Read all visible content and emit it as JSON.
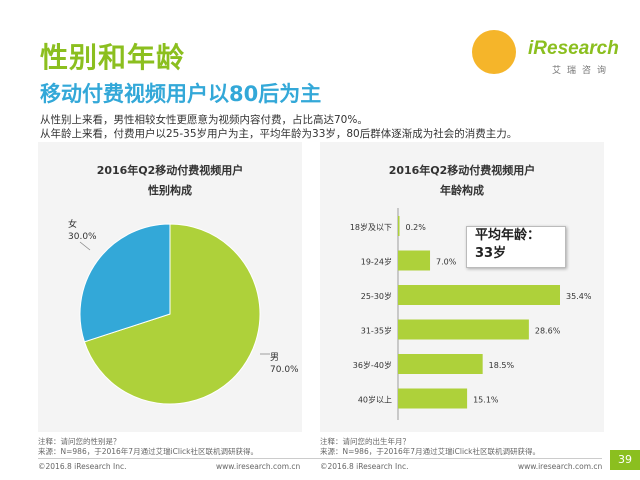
{
  "header": {
    "title": "性别和年龄",
    "subtitle": "移动付费视频用户以80后为主",
    "desc_line1": "从性别上来看，男性相较女性更愿意为视频内容付费，占比高达70%。",
    "desc_line2": "从年龄上来看，付费用户以25-35岁用户为主，平均年龄为33岁，80后群体逐渐成为社会的消费主力。"
  },
  "logo": {
    "brand": "iResearch",
    "sub": "艾瑞咨询",
    "color": "#8bbf1f",
    "circle_color": "#f5b52a"
  },
  "colors": {
    "accent_green": "#8bbf1f",
    "accent_blue": "#33a8d8",
    "pie_male": "#aed13a",
    "pie_female": "#33a8d8",
    "bar": "#aed13a"
  },
  "chart_data": [
    {
      "type": "pie",
      "title_line1": "2016年Q2移动付费视频用户",
      "title_line2": "性别构成",
      "slices": [
        {
          "label": "男",
          "value": 70.0,
          "display": "70.0%"
        },
        {
          "label": "女",
          "value": 30.0,
          "display": "30.0%"
        }
      ]
    },
    {
      "type": "bar",
      "orientation": "horizontal",
      "title_line1": "2016年Q2移动付费视频用户",
      "title_line2": "年龄构成",
      "categories": [
        "18岁及以下",
        "19-24岁",
        "25-30岁",
        "31-35岁",
        "36岁-40岁",
        "40岁以上"
      ],
      "values": [
        0.2,
        7.0,
        35.4,
        28.6,
        18.5,
        15.1
      ],
      "labels": [
        "0.2%",
        "7.0%",
        "35.4%",
        "28.6%",
        "18.5%",
        "15.1%"
      ],
      "xlim": [
        0,
        35.4
      ],
      "annotation_line1": "平均年龄：",
      "annotation_line2": "33岁"
    }
  ],
  "footnotes": {
    "left_q": "注释：请问您的性别是？",
    "left_src": "来源：N=986，于2016年7月通过艾瑞iClick社区联机调研获得。",
    "right_q": "注释：请问您的出生年月？",
    "right_src": "来源：N=986，于2016年7月通过艾瑞iClick社区联机调研获得。"
  },
  "footer": {
    "copyright_left": "©2016.8 iResearch Inc.",
    "url_left": "www.iresearch.com.cn",
    "copyright_right": "©2016.8 iResearch Inc.",
    "url_right": "www.iresearch.com.cn",
    "page_number": "39"
  }
}
